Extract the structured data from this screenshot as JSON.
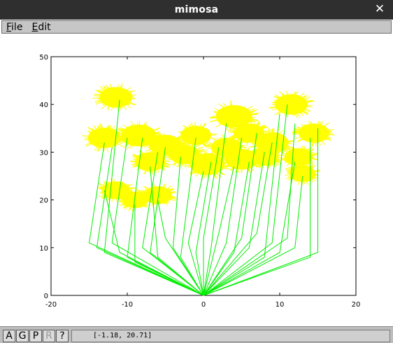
{
  "window": {
    "title": "mimosa"
  },
  "menubar": {
    "items": [
      {
        "key": "F",
        "rest": "ile"
      },
      {
        "key": "E",
        "rest": "dit"
      }
    ]
  },
  "plot": {
    "colors": {
      "stem": "#00ee00",
      "flower": "#ffff00",
      "axis": "#000000"
    },
    "chart_data": {
      "type": "scatter",
      "xlim": [
        -20,
        20
      ],
      "ylim": [
        0,
        50
      ],
      "xticks": [
        -20,
        -10,
        0,
        10,
        20
      ],
      "yticks": [
        0,
        10,
        20,
        30,
        40,
        50
      ],
      "grid": false,
      "root": [
        0,
        0
      ],
      "flowers": [
        {
          "x": -11.5,
          "y": 41.5,
          "r": 3.0
        },
        {
          "x": -13,
          "y": 33,
          "r": 3.0
        },
        {
          "x": -8.5,
          "y": 33.5,
          "r": 3.2
        },
        {
          "x": -5,
          "y": 31.5,
          "r": 3.0
        },
        {
          "x": -7,
          "y": 28,
          "r": 2.8
        },
        {
          "x": -11.5,
          "y": 22,
          "r": 2.6
        },
        {
          "x": -6,
          "y": 21,
          "r": 2.6
        },
        {
          "x": -9,
          "y": 20,
          "r": 2.4
        },
        {
          "x": -1,
          "y": 33.5,
          "r": 2.8
        },
        {
          "x": 4,
          "y": 37.5,
          "r": 3.3
        },
        {
          "x": 6,
          "y": 34,
          "r": 2.8
        },
        {
          "x": 9,
          "y": 32,
          "r": 3.0
        },
        {
          "x": 11.5,
          "y": 40,
          "r": 3.0
        },
        {
          "x": 14.5,
          "y": 34,
          "r": 2.8
        },
        {
          "x": 12.5,
          "y": 29,
          "r": 2.6
        },
        {
          "x": 13,
          "y": 25.5,
          "r": 2.4
        },
        {
          "x": 5,
          "y": 28.5,
          "r": 3.0
        },
        {
          "x": 0.5,
          "y": 27.5,
          "r": 3.2
        },
        {
          "x": -2.5,
          "y": 29.5,
          "r": 2.8
        },
        {
          "x": 3,
          "y": 31,
          "r": 2.8
        },
        {
          "x": 8,
          "y": 29,
          "r": 2.6
        }
      ],
      "stems": [
        {
          "mid": [
            -15,
            11
          ],
          "top": [
            -13,
            32
          ]
        },
        {
          "mid": [
            -14,
            10
          ],
          "top": [
            -12,
            31
          ]
        },
        {
          "mid": [
            -13,
            9
          ],
          "top": [
            -11,
            41
          ]
        },
        {
          "mid": [
            -12,
            11
          ],
          "top": [
            -10,
            33
          ]
        },
        {
          "mid": [
            -11,
            9
          ],
          "top": [
            -13,
            22
          ]
        },
        {
          "mid": [
            -10,
            8
          ],
          "top": [
            -8,
            33
          ]
        },
        {
          "mid": [
            -9,
            7
          ],
          "top": [
            -9,
            19
          ]
        },
        {
          "mid": [
            -8,
            10
          ],
          "top": [
            -6,
            30
          ]
        },
        {
          "mid": [
            -7,
            9
          ],
          "top": [
            -5,
            31
          ]
        },
        {
          "mid": [
            -6,
            8
          ],
          "top": [
            -7,
            27
          ]
        },
        {
          "mid": [
            -5,
            12
          ],
          "top": [
            -6,
            20
          ]
        },
        {
          "mid": [
            -4,
            10
          ],
          "top": [
            -3,
            29
          ]
        },
        {
          "mid": [
            -3,
            8
          ],
          "top": [
            -1,
            33
          ]
        },
        {
          "mid": [
            -2,
            11
          ],
          "top": [
            0,
            26
          ]
        },
        {
          "mid": [
            -1,
            9
          ],
          "top": [
            1,
            28
          ]
        },
        {
          "mid": [
            0,
            12
          ],
          "top": [
            2,
            31
          ]
        },
        {
          "mid": [
            1,
            10
          ],
          "top": [
            3,
            36
          ]
        },
        {
          "mid": [
            2,
            13
          ],
          "top": [
            4,
            27
          ]
        },
        {
          "mid": [
            3,
            11
          ],
          "top": [
            5,
            33
          ]
        },
        {
          "mid": [
            4,
            9
          ],
          "top": [
            6,
            28
          ]
        },
        {
          "mid": [
            5,
            12
          ],
          "top": [
            7,
            34
          ]
        },
        {
          "mid": [
            6,
            10
          ],
          "top": [
            8,
            30
          ]
        },
        {
          "mid": [
            7,
            13
          ],
          "top": [
            9,
            32
          ]
        },
        {
          "mid": [
            8,
            8
          ],
          "top": [
            10,
            38
          ]
        },
        {
          "mid": [
            9,
            11
          ],
          "top": [
            11,
            40
          ]
        },
        {
          "mid": [
            10,
            9
          ],
          "top": [
            12,
            28
          ]
        },
        {
          "mid": [
            11,
            12
          ],
          "top": [
            12,
            36
          ]
        },
        {
          "mid": [
            12,
            10
          ],
          "top": [
            13,
            25
          ]
        },
        {
          "mid": [
            14,
            8
          ],
          "top": [
            14,
            33
          ]
        },
        {
          "mid": [
            15,
            9
          ],
          "top": [
            15,
            35
          ]
        }
      ]
    }
  },
  "statusbar": {
    "buttons": [
      {
        "label": "A",
        "enabled": true
      },
      {
        "label": "G",
        "enabled": true
      },
      {
        "label": "P",
        "enabled": true
      },
      {
        "label": "R",
        "enabled": false
      },
      {
        "label": "?",
        "enabled": true
      }
    ],
    "coords": "[-1.18, 20.71]"
  }
}
